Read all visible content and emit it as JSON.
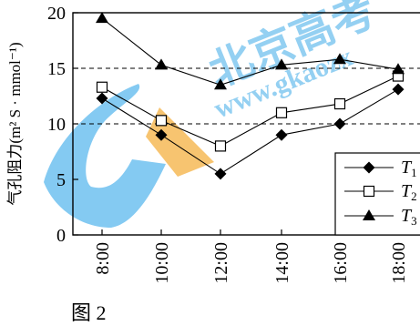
{
  "chart_data": {
    "type": "line",
    "ylabel": "气孔阻力(m² S · mmol⁻¹)",
    "caption": "图 2",
    "categories": [
      "8:00",
      "10:00",
      "12:00",
      "14:00",
      "16:00",
      "18:00"
    ],
    "ylim": [
      0,
      20
    ],
    "y_ticks": [
      "0",
      "5",
      "10",
      "15",
      "20"
    ],
    "dashed_lines": [
      10,
      15
    ],
    "legend_position": "bottom-right",
    "series": [
      {
        "name": "T1",
        "marker": "diamond-filled",
        "values": [
          12.3,
          9.0,
          5.5,
          9.0,
          10.0,
          13.1
        ]
      },
      {
        "name": "T2",
        "marker": "square-open",
        "values": [
          13.3,
          10.3,
          8.0,
          11.0,
          11.8,
          14.3
        ]
      },
      {
        "name": "T3",
        "marker": "triangle-filled",
        "values": [
          19.5,
          15.3,
          13.5,
          15.3,
          15.8,
          14.9
        ]
      }
    ],
    "watermark_text": "北京高考在线 www.gkaozx"
  }
}
